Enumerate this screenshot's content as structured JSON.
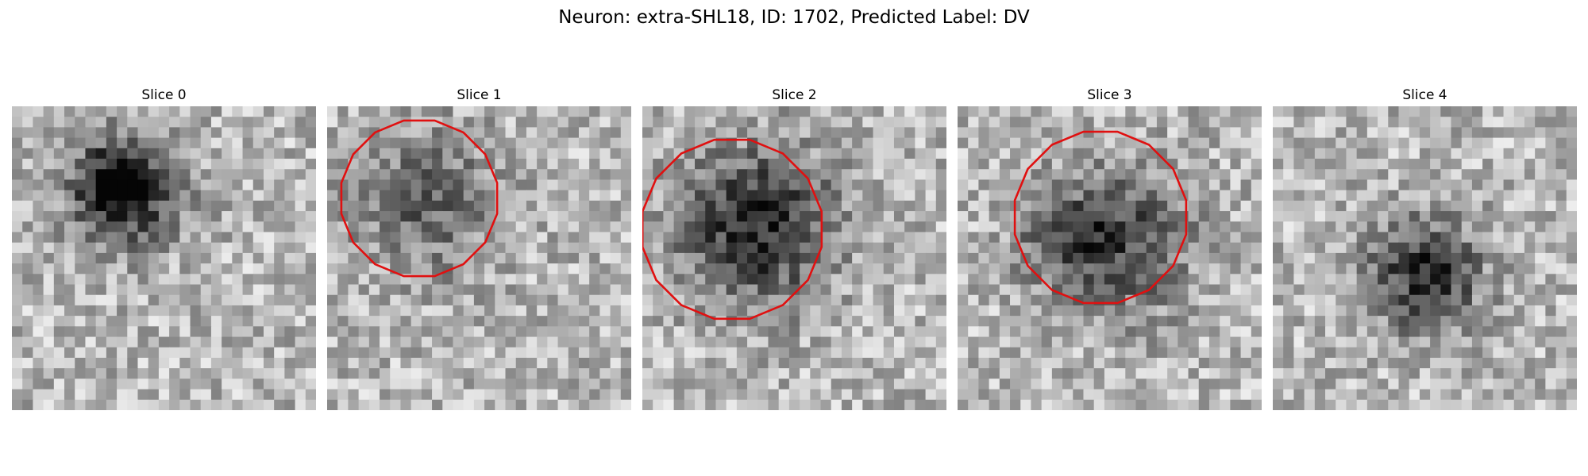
{
  "figure": {
    "title": "Neuron: extra-SHL18, ID: 1702, Predicted Label: DV"
  },
  "panels": [
    {
      "title": "Slice 0",
      "has_outline": false,
      "image": "grayscale microscopy patch, dark blob upper-left of center"
    },
    {
      "title": "Slice 1",
      "has_outline": true,
      "image": "grayscale microscopy patch with red cell outline"
    },
    {
      "title": "Slice 2",
      "has_outline": true,
      "image": "grayscale microscopy patch with red cell outline"
    },
    {
      "title": "Slice 3",
      "has_outline": true,
      "image": "grayscale microscopy patch with red cell outline"
    },
    {
      "title": "Slice 4",
      "has_outline": false,
      "image": "grayscale microscopy patch, dark blob center"
    }
  ],
  "colors": {
    "outline": "#e01010",
    "background": "#ffffff"
  }
}
